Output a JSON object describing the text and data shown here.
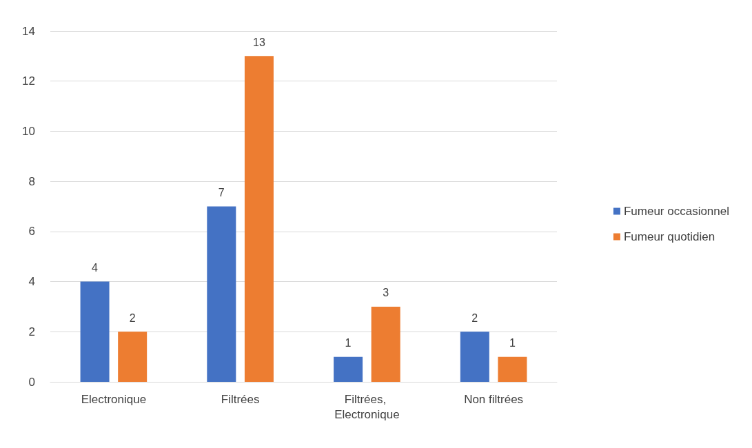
{
  "chart_data": {
    "type": "bar",
    "categories": [
      "Electronique",
      "Filtrées",
      "Filtrées, Electronique",
      "Non filtrées"
    ],
    "series": [
      {
        "name": "Fumeur occasionnel",
        "color": "#4472c4",
        "values": [
          4,
          7,
          1,
          2
        ]
      },
      {
        "name": "Fumeur quotidien",
        "color": "#ed7d31",
        "values": [
          2,
          13,
          3,
          1
        ]
      }
    ],
    "ylim": [
      0,
      14
    ],
    "yticks": [
      0,
      2,
      4,
      6,
      8,
      10,
      12,
      14
    ],
    "grid": "y",
    "legend": "right",
    "data_labels": true
  }
}
